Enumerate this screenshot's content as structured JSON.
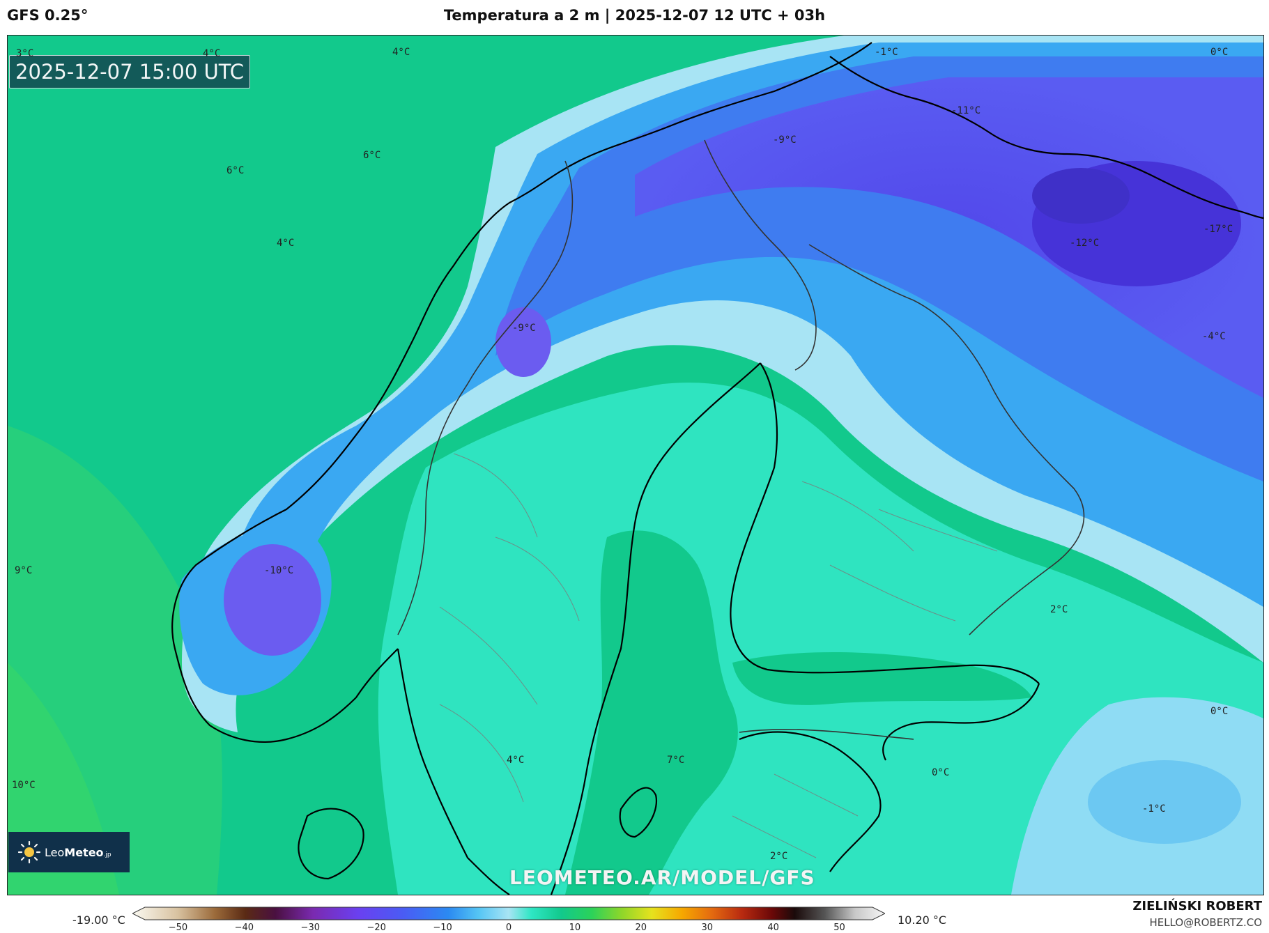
{
  "header": {
    "model": "GFS 0.25°",
    "title": "Temperatura a 2 m | 2025-12-07 12 UTC + 03h"
  },
  "map": {
    "valid_time": "2025-12-07 15:00 UTC",
    "temperature_labels": [
      {
        "text": "3°C"
      },
      {
        "text": "4°C"
      },
      {
        "text": "4°C"
      },
      {
        "text": "-1°C"
      },
      {
        "text": "0°C"
      },
      {
        "text": "-11°C"
      },
      {
        "text": "-9°C"
      },
      {
        "text": "6°C"
      },
      {
        "text": "6°C"
      },
      {
        "text": "4°C"
      },
      {
        "text": "-12°C"
      },
      {
        "text": "-17°C"
      },
      {
        "text": "-9°C"
      },
      {
        "text": "-4°C"
      },
      {
        "text": "9°C"
      },
      {
        "text": "-10°C"
      },
      {
        "text": "2°C"
      },
      {
        "text": "0°C"
      },
      {
        "text": "10°C"
      },
      {
        "text": "4°C"
      },
      {
        "text": "7°C"
      },
      {
        "text": "0°C"
      },
      {
        "text": "-1°C"
      },
      {
        "text": "2°C"
      }
    ],
    "watermark": "LEOMETEO.AR/MODEL/GFS",
    "logo": {
      "prefix": "Leo",
      "bold": "Meteo",
      "suffix": ".jp"
    }
  },
  "legend": {
    "min_label": "-19.00 °C",
    "max_label": "10.20 °C",
    "ticks": [
      "−50",
      "−40",
      "−30",
      "−20",
      "−10",
      "0",
      "10",
      "20",
      "30",
      "40",
      "50"
    ],
    "range": [
      -55,
      55
    ]
  },
  "footer": {
    "author": "ZIELIŃSKI ROBERT",
    "email": "HELLO@ROBERTZ.CO"
  },
  "colors": {
    "sea": "#12c98c",
    "warm_sea": "#2bd27a",
    "land_mild": "#2ee6c4",
    "cool": "#a9e2f5",
    "cold": "#3a8ff0",
    "very_cold": "#5a55f0",
    "coast": "#000000"
  }
}
